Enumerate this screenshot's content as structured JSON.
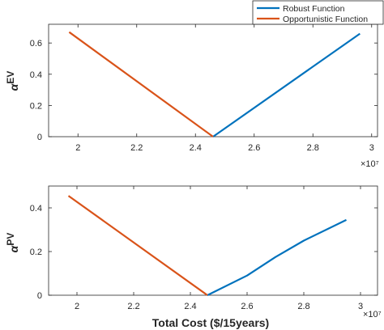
{
  "chart_data": [
    {
      "type": "line",
      "ylabel_symbol": "α",
      "ylabel_sub": "EV",
      "xlim": [
        1.9,
        3.02
      ],
      "ylim": [
        0,
        0.72
      ],
      "xticks": [
        2,
        2.2,
        2.4,
        2.6,
        2.8,
        3
      ],
      "xtick_labels": [
        "2",
        "2.2",
        "2.4",
        "2.6",
        "2.8",
        "3"
      ],
      "yticks": [
        0,
        0.2,
        0.4,
        0.6
      ],
      "ytick_labels": [
        "0",
        "0.2",
        "0.4",
        "0.6"
      ],
      "x_exponent": "×10⁷",
      "series": [
        {
          "name": "Robust Function",
          "color": "#0072BD",
          "x": [
            2.46,
            2.96
          ],
          "y": [
            0,
            0.66
          ]
        },
        {
          "name": "Opportunistic Function",
          "color": "#D95319",
          "x": [
            1.97,
            2.46
          ],
          "y": [
            0.67,
            0
          ]
        }
      ]
    },
    {
      "type": "line",
      "ylabel_symbol": "α",
      "ylabel_sub": "PV",
      "xlabel": "Total Cost ($/15years)",
      "xlim": [
        1.9,
        3.06
      ],
      "ylim": [
        0,
        0.5
      ],
      "xticks": [
        2,
        2.2,
        2.4,
        2.6,
        2.8,
        3
      ],
      "xtick_labels": [
        "2",
        "2.2",
        "2.4",
        "2.6",
        "2.8",
        "3"
      ],
      "yticks": [
        0,
        0.2,
        0.4
      ],
      "ytick_labels": [
        "0",
        "0.2",
        "0.4"
      ],
      "x_exponent": "×10⁷",
      "series": [
        {
          "name": "Robust Function",
          "color": "#0072BD",
          "x": [
            2.46,
            2.6,
            2.7,
            2.8,
            2.95
          ],
          "y": [
            0,
            0.09,
            0.175,
            0.25,
            0.345
          ]
        },
        {
          "name": "Opportunistic Function",
          "color": "#D95319",
          "x": [
            1.97,
            2.46
          ],
          "y": [
            0.455,
            0
          ]
        }
      ]
    }
  ],
  "legend": {
    "placement": "top-right",
    "items": [
      {
        "label": "Robust Function",
        "color": "#0072BD"
      },
      {
        "label": "Opportunistic Function",
        "color": "#D95319"
      }
    ]
  }
}
